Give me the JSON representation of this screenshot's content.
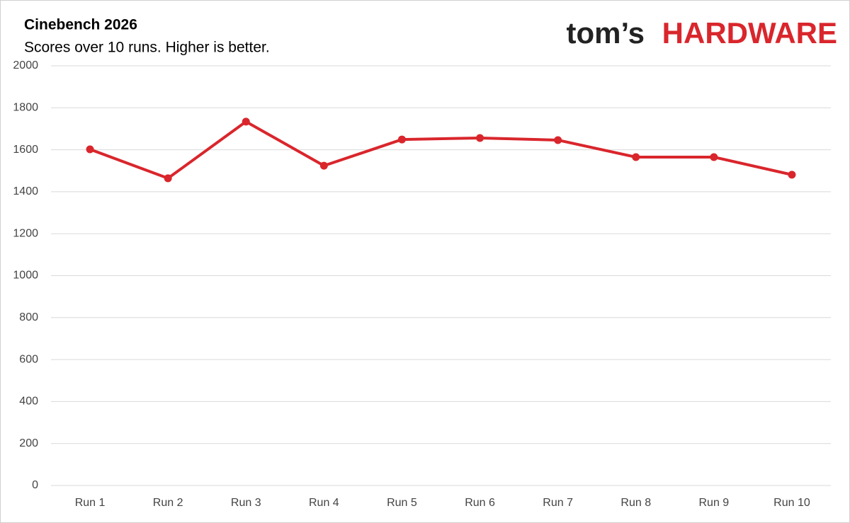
{
  "chart_data": {
    "type": "line",
    "title": "Cinebench 2026",
    "subtitle": "Scores over 10 runs. Higher is better.",
    "categories": [
      "Run 1",
      "Run 2",
      "Run 3",
      "Run 4",
      "Run 5",
      "Run 6",
      "Run 7",
      "Run 8",
      "Run 9",
      "Run 10"
    ],
    "series": [
      {
        "color": "#d9262c",
        "values": [
          1602,
          1464,
          1734,
          1524,
          1649,
          1656,
          1646,
          1565,
          1565,
          1481
        ]
      }
    ],
    "ylim": [
      0,
      2000
    ],
    "yticks": [
      0,
      200,
      400,
      600,
      800,
      1000,
      1200,
      1400,
      1600,
      1800,
      2000
    ],
    "grid": true
  },
  "logo": {
    "prefix": "tom’s",
    "brand": "HARDWARE"
  }
}
